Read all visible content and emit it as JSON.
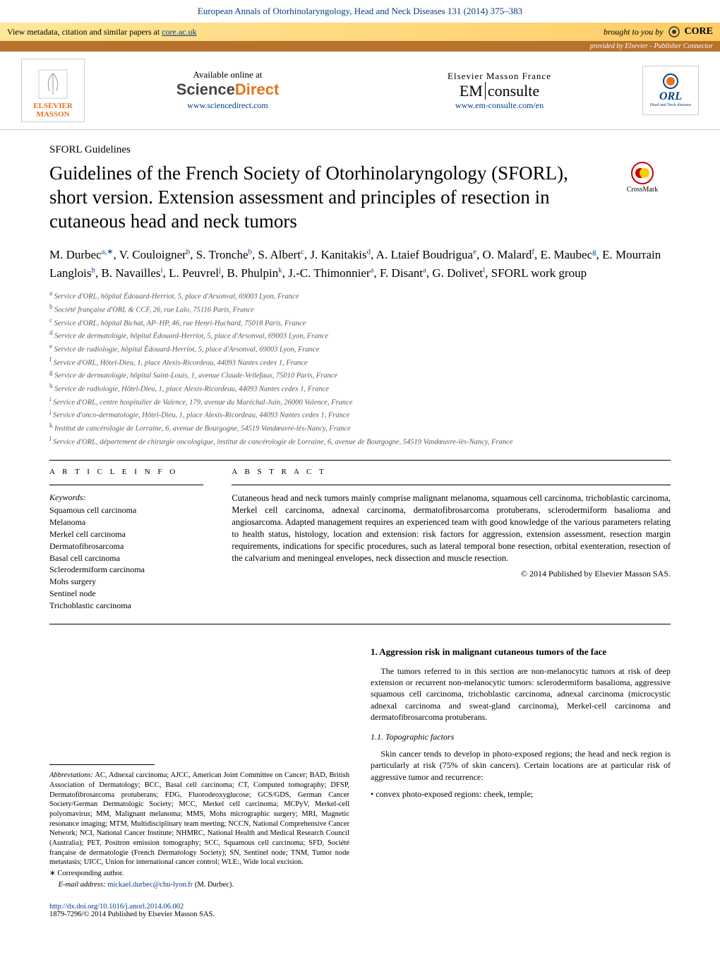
{
  "header": {
    "journal_ref": "European Annals of Otorhinolaryngology, Head and Neck Diseases 131 (2014) 375–383"
  },
  "core": {
    "left_text": "View metadata, citation and similar papers at ",
    "left_link": "core.ac.uk",
    "right_text": "brought to you by",
    "logo": "CORE",
    "provided": "provided by Elsevier - Publisher Connector"
  },
  "pub": {
    "logo_top": "ELSEVIER",
    "logo_bottom": "MASSON",
    "avail": "Available online at",
    "sd1": "Science",
    "sd2": "Direct",
    "sd_url": "www.sciencedirect.com",
    "emf": "Elsevier Masson France",
    "em1": "EM",
    "em2": "consulte",
    "em_url": "www.em-consulte.com/en",
    "orl": "ORL",
    "orl_sub": "Head and Neck diseases"
  },
  "article": {
    "section": "SFORL Guidelines",
    "title": "Guidelines of the French Society of Otorhinolaryngology (SFORL), short version. Extension assessment and principles of resection in cutaneous head and neck tumors",
    "crossmark": "CrossMark"
  },
  "authors": [
    {
      "n": "M. Durbec",
      "s": "a,∗"
    },
    {
      "n": "V. Couloigner",
      "s": "b"
    },
    {
      "n": "S. Tronche",
      "s": "b"
    },
    {
      "n": "S. Albert",
      "s": "c"
    },
    {
      "n": "J. Kanitakis",
      "s": "d"
    },
    {
      "n": "A. Ltaief Boudrigua",
      "s": "e"
    },
    {
      "n": "O. Malard",
      "s": "f"
    },
    {
      "n": "E. Maubec",
      "s": "g"
    },
    {
      "n": "E. Mourrain Langlois",
      "s": "h"
    },
    {
      "n": "B. Navailles",
      "s": "i"
    },
    {
      "n": "L. Peuvrel",
      "s": "j"
    },
    {
      "n": "B. Phulpin",
      "s": "k"
    },
    {
      "n": "J.-C. Thimonnier",
      "s": "a"
    },
    {
      "n": "F. Disant",
      "s": "a"
    },
    {
      "n": "G. Dolivet",
      "s": "l"
    }
  ],
  "authors_suffix": ", SFORL work group",
  "affiliations": [
    {
      "s": "a",
      "t": "Service d'ORL, hôpital Édouard-Herriot, 5, place d'Arsonval, 69003 Lyon, France"
    },
    {
      "s": "b",
      "t": "Société française d'ORL & CCF, 26, rue Lalo, 75116 Paris, France"
    },
    {
      "s": "c",
      "t": "Service d'ORL, hôpital Bichat, AP–HP, 46, rue Henri-Huchard, 75018 Paris, France"
    },
    {
      "s": "d",
      "t": "Service de dermatologie, hôpital Édouard-Herriot, 5, place d'Arsonval, 69003 Lyon, France"
    },
    {
      "s": "e",
      "t": "Service de radiologie, hôpital Édouard-Herriot, 5, place d'Arsonval, 69003 Lyon, France"
    },
    {
      "s": "f",
      "t": "Service d'ORL, Hôtel-Dieu, 1, place Alexis-Ricordeau, 44093 Nantes cedex 1, France"
    },
    {
      "s": "g",
      "t": "Service de dermatologie, hôpital Saint-Louis, 1, avenue Claude-Vellefaux, 75010 Paris, France"
    },
    {
      "s": "h",
      "t": "Service de radiologie, Hôtel-Dieu, 1, place Alexis-Ricordeau, 44093 Nantes cedex 1, France"
    },
    {
      "s": "i",
      "t": "Service d'ORL, centre hospitalier de Valence, 179, avenue du Maréchal-Juin, 26000 Valence, France"
    },
    {
      "s": "j",
      "t": "Service d'onco-dermatologie, Hôtel-Dieu, 1, place Alexis-Ricordeau, 44093 Nantes cedex 1, France"
    },
    {
      "s": "k",
      "t": "Institut de cancérologie de Lorraine, 6, avenue de Bourgogne, 54519 Vandœuvre-lès-Nancy, France"
    },
    {
      "s": "l",
      "t": "Service d'ORL, département de chirurgie oncologique, institut de cancérologie de Lorraine, 6, avenue de Bourgogne, 54519 Vandœuvre-lès-Nancy, France"
    }
  ],
  "info": {
    "heading": "A R T I C L E  I N F O",
    "kw_label": "Keywords:",
    "keywords": [
      "Squamous cell carcinoma",
      "Melanoma",
      "Merkel cell carcinoma",
      "Dermatofibrosarcoma",
      "Basal cell carcinoma",
      "Sclerodermiform carcinoma",
      "Mohs surgery",
      "Sentinel node",
      "Trichoblastic carcinoma"
    ]
  },
  "abstract": {
    "heading": "A B S T R A C T",
    "text": "Cutaneous head and neck tumors mainly comprise malignant melanoma, squamous cell carcinoma, trichoblastic carcinoma, Merkel cell carcinoma, adnexal carcinoma, dermatofibrosarcoma protuberans, sclerodermiform basalioma and angiosarcoma. Adapted management requires an experienced team with good knowledge of the various parameters relating to health status, histology, location and extension: risk factors for aggression, extension assessment, resection margin requirements, indications for specific procedures, such as lateral temporal bone resection, orbital exenteration, resection of the calvarium and meningeal envelopes, neck dissection and muscle resection.",
    "copyright": "© 2014 Published by Elsevier Masson SAS."
  },
  "body": {
    "sec1_heading": "1.  Aggression risk in malignant cutaneous tumors of the face",
    "sec1_p1": "The tumors referred to in this section are non-melanocytic tumors at risk of deep extension or recurrent non-melanocytic tumors: sclerodermiform basalioma, aggressive squamous cell carcinoma, trichoblastic carcinoma, adnexal carcinoma (microcystic adnexal carcinoma and sweat-gland carcinoma), Merkel-cell carcinoma and dermatofibrosarcoma protuberans.",
    "sec1_1_heading": "1.1.  Topographic factors",
    "sec1_1_p1": "Skin cancer tends to develop in photo-exposed regions; the head and neck region is particularly at risk (75% of skin cancers). Certain locations are at particular risk of aggressive tumor and recurrence:",
    "bullet1": "convex photo-exposed regions: cheek, temple;",
    "abbrev_label": "Abbreviations:",
    "abbrev_text": "  AC, Adnexal carcinoma; AJCC, American Joint Committee on Cancer; BAD, British Association of Dermatology; BCC, Basal cell carcinoma; CT, Computed tomography; DFSP, Dermatofibrosarcoma protuberans; FDG, Fluorodeoxyglucose; GCS/GDS, German Cancer Society/German Dermatologic Society; MCC, Merkel cell carcinoma; MCPyV, Merkel-cell polyomavirus; MM, Malignant melanoma; MMS, Mohs micrographic surgery; MRI, Magnetic resonance imaging; MTM, Multidisciplinary team meeting; NCCN, National Comprehensive Cancer Network; NCI, National Cancer Institute; NHMRC, National Health and Medical Research Council (Australia); PET, Positron emission tomography; SCC, Squamous cell carcinoma; SFD, Société française de dermatologie (French Dermatology Society); SN, Sentinel node; TNM, Tumor node metastasis; UICC, Union for international cancer control; WLE:, Wide local excision.",
    "corr_label": "∗ Corresponding author.",
    "email_label": "E-mail address: ",
    "email": "mickael.durbec@chu-lyon.fr",
    "email_suffix": " (M. Durbec).",
    "doi": "http://dx.doi.org/10.1016/j.anorl.2014.06.002",
    "issn": "1879-7296/© 2014 Published by Elsevier Masson SAS."
  }
}
